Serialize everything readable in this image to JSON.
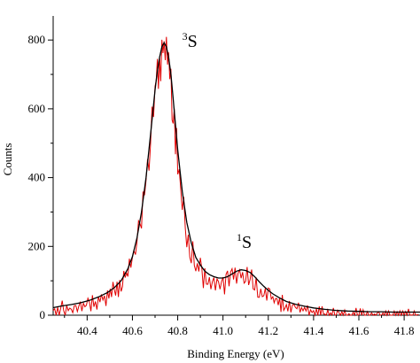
{
  "chart_data": {
    "type": "line",
    "title": "",
    "xlabel": "Binding Energy (eV)",
    "ylabel": "Counts",
    "xlim": [
      40.25,
      41.87
    ],
    "ylim": [
      0,
      870
    ],
    "x_ticks": [
      40.4,
      40.6,
      40.8,
      41.0,
      41.2,
      41.4,
      41.6,
      41.8
    ],
    "y_ticks": [
      0,
      200,
      400,
      600,
      800
    ],
    "x_tick_labels": [
      "40.4",
      "40.6",
      "40.8",
      "41.0",
      "41.2",
      "41.4",
      "41.6",
      "41.8"
    ],
    "y_tick_labels": [
      "0",
      "200",
      "400",
      "600",
      "800"
    ],
    "grid": false,
    "legend": "none",
    "annotations": [
      {
        "sup": "3",
        "text": "S",
        "x": 40.82,
        "y": 780
      },
      {
        "sup": "1",
        "text": "S",
        "x": 41.06,
        "y": 195
      }
    ],
    "series": [
      {
        "kind": "data",
        "color": "#e00000",
        "x": [
          40.25,
          40.29,
          40.33,
          40.37,
          40.41,
          40.45,
          40.49,
          40.52,
          40.55,
          40.58,
          40.6,
          40.62,
          40.64,
          40.66,
          40.68,
          40.7,
          40.71,
          40.72,
          40.73,
          40.74,
          40.75,
          40.76,
          40.77,
          40.78,
          40.79,
          40.8,
          40.82,
          40.84,
          40.86,
          40.88,
          40.9,
          40.92,
          40.94,
          40.96,
          40.98,
          41.0,
          41.02,
          41.04,
          41.06,
          41.08,
          41.1,
          41.12,
          41.14,
          41.16,
          41.18,
          41.2,
          41.22,
          41.25,
          41.28,
          41.32,
          41.36,
          41.4,
          41.45,
          41.5,
          41.55,
          41.6,
          41.65,
          41.7,
          41.75,
          41.8,
          41.87
        ],
        "y": [
          25,
          32,
          28,
          38,
          42,
          55,
          68,
          85,
          110,
          150,
          190,
          245,
          320,
          420,
          540,
          670,
          715,
          755,
          790,
          810,
          790,
          760,
          705,
          630,
          555,
          480,
          360,
          270,
          210,
          172,
          148,
          128,
          118,
          112,
          108,
          108,
          112,
          120,
          130,
          135,
          132,
          125,
          110,
          95,
          82,
          70,
          60,
          50,
          40,
          32,
          27,
          22,
          18,
          15,
          13,
          12,
          11,
          10,
          10,
          9,
          9
        ]
      },
      {
        "kind": "fit",
        "color": "#000000",
        "x": [
          40.25,
          40.29,
          40.33,
          40.37,
          40.41,
          40.45,
          40.49,
          40.52,
          40.55,
          40.58,
          40.6,
          40.62,
          40.64,
          40.66,
          40.68,
          40.7,
          40.71,
          40.72,
          40.73,
          40.74,
          40.75,
          40.76,
          40.77,
          40.78,
          40.79,
          40.8,
          40.82,
          40.84,
          40.86,
          40.88,
          40.9,
          40.92,
          40.94,
          40.96,
          40.98,
          41.0,
          41.02,
          41.04,
          41.06,
          41.08,
          41.1,
          41.12,
          41.14,
          41.16,
          41.18,
          41.2,
          41.22,
          41.25,
          41.28,
          41.32,
          41.36,
          41.4,
          41.45,
          41.5,
          41.55,
          41.6,
          41.65,
          41.7,
          41.75,
          41.8,
          41.87
        ],
        "y": [
          22,
          27,
          31,
          36,
          43,
          53,
          66,
          80,
          100,
          135,
          170,
          225,
          300,
          400,
          525,
          655,
          710,
          750,
          780,
          792,
          780,
          750,
          700,
          630,
          555,
          480,
          360,
          270,
          210,
          168,
          146,
          128,
          118,
          112,
          108,
          108,
          112,
          120,
          128,
          132,
          130,
          124,
          112,
          97,
          84,
          72,
          62,
          50,
          40,
          32,
          26,
          21,
          17,
          14,
          12,
          11,
          10,
          10,
          9,
          9,
          9
        ]
      }
    ]
  }
}
